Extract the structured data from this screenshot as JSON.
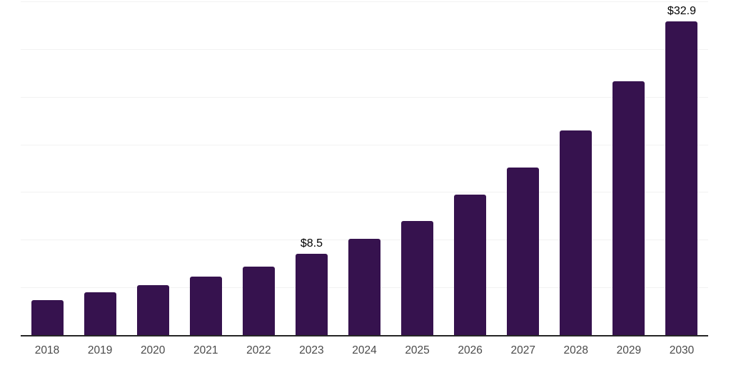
{
  "chart_data": {
    "type": "bar",
    "title": "",
    "xlabel": "",
    "ylabel": "",
    "categories": [
      "2018",
      "2019",
      "2020",
      "2021",
      "2022",
      "2023",
      "2024",
      "2025",
      "2026",
      "2027",
      "2028",
      "2029",
      "2030"
    ],
    "values": [
      3.7,
      4.5,
      5.2,
      6.1,
      7.2,
      8.5,
      10.1,
      12.0,
      14.7,
      17.6,
      21.5,
      26.6,
      32.9
    ],
    "point_labels": [
      "",
      "",
      "",
      "",
      "",
      "$8.5",
      "",
      "",
      "",
      "",
      "",
      "",
      "$32.9"
    ],
    "ylim": [
      0,
      35
    ],
    "gridline_step": 5,
    "y_axis_labels_visible": false,
    "legend": null,
    "colors": {
      "bar_fill": "#36124e",
      "gridline": "#f2f2f2",
      "axis_line": "#262626",
      "tick_label": "#4a4a4a",
      "value_label": "#000000",
      "background": "#ffffff"
    }
  }
}
